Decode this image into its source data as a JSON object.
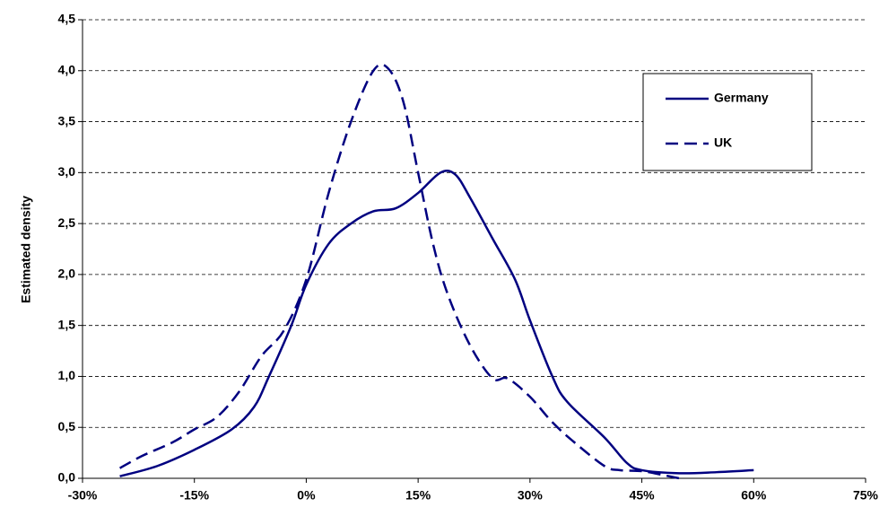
{
  "chart_data": {
    "type": "line",
    "y_label": "Estimated density",
    "xlim": [
      -30,
      75
    ],
    "xticks": [
      {
        "value": -30,
        "label": "-30%"
      },
      {
        "value": -15,
        "label": "-15%"
      },
      {
        "value": 0,
        "label": "0%"
      },
      {
        "value": 15,
        "label": "15%"
      },
      {
        "value": 30,
        "label": "30%"
      },
      {
        "value": 45,
        "label": "45%"
      },
      {
        "value": 60,
        "label": "60%"
      },
      {
        "value": 75,
        "label": "75%"
      }
    ],
    "ylim": [
      0,
      4.5
    ],
    "yticks": [
      {
        "value": 0,
        "label": "0,0"
      },
      {
        "value": 0.5,
        "label": "0,5"
      },
      {
        "value": 1,
        "label": "1,0"
      },
      {
        "value": 1.5,
        "label": "1,5"
      },
      {
        "value": 2,
        "label": "2,0"
      },
      {
        "value": 2.5,
        "label": "2,5"
      },
      {
        "value": 3,
        "label": "3,0"
      },
      {
        "value": 3.5,
        "label": "3,5"
      },
      {
        "value": 4,
        "label": "4,0"
      },
      {
        "value": 4.5,
        "label": "4,5"
      }
    ],
    "grid": true,
    "legend": "upper right",
    "series": [
      {
        "name": "Germany",
        "color": "#000080",
        "dash": "solid",
        "x": [
          -25,
          -20,
          -15,
          -10,
          -7,
          -5,
          -2,
          0,
          3,
          6,
          9,
          12,
          15,
          18,
          20,
          22,
          25,
          28,
          30,
          33,
          35,
          40,
          43,
          45,
          50,
          55,
          60
        ],
        "values": [
          0.02,
          0.12,
          0.28,
          0.48,
          0.7,
          1.0,
          1.5,
          1.9,
          2.3,
          2.5,
          2.62,
          2.65,
          2.8,
          3.0,
          2.98,
          2.75,
          2.35,
          1.95,
          1.55,
          1.0,
          0.75,
          0.4,
          0.15,
          0.08,
          0.05,
          0.06,
          0.08
        ]
      },
      {
        "name": "UK",
        "color": "#000080",
        "dash": "dashed",
        "x": [
          -25,
          -22,
          -18,
          -15,
          -12,
          -9,
          -6,
          -3,
          0,
          3,
          6,
          9,
          11,
          13,
          15,
          17,
          19,
          22,
          25,
          27,
          30,
          33,
          36,
          40,
          42,
          45,
          48,
          50
        ],
        "values": [
          0.1,
          0.22,
          0.35,
          0.48,
          0.6,
          0.85,
          1.2,
          1.45,
          1.95,
          2.8,
          3.5,
          4.0,
          4.02,
          3.7,
          3.0,
          2.3,
          1.8,
          1.3,
          0.98,
          0.98,
          0.8,
          0.55,
          0.35,
          0.12,
          0.08,
          0.07,
          0.03,
          0.0
        ]
      }
    ]
  }
}
